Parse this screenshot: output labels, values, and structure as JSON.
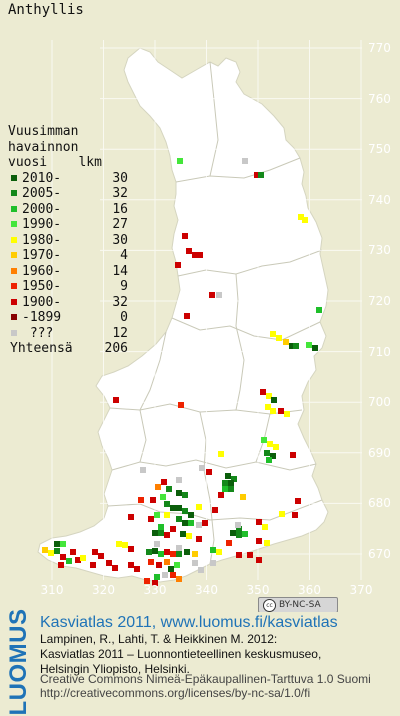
{
  "map": {
    "title": "Anthyllis",
    "y_ticks": [
      "770",
      "760",
      "750",
      "740",
      "730",
      "720",
      "710",
      "700",
      "690",
      "680",
      "670"
    ],
    "x_ticks": [
      "310",
      "320",
      "330",
      "340",
      "350",
      "360",
      "370"
    ],
    "license_badge": "BY-NC-SA",
    "land_color": "#ffffff",
    "background_color": "#ecebd2",
    "border_color": "#bbbbbb"
  },
  "legend": {
    "title_lines": [
      "Vuusimman",
      "havainnon",
      "vuosi    lkm"
    ],
    "entries": [
      {
        "label": "2010-",
        "count": "30",
        "color": "#0b5e0b"
      },
      {
        "label": "2005-",
        "count": "32",
        "color": "#14881a"
      },
      {
        "label": "2000-",
        "count": "16",
        "color": "#1fbf2a"
      },
      {
        "label": "1990-",
        "count": "27",
        "color": "#44e63a"
      },
      {
        "label": "1980-",
        "count": "30",
        "color": "#ffff00"
      },
      {
        "label": "1970-",
        "count": "4",
        "color": "#ffcc00"
      },
      {
        "label": "1960-",
        "count": "14",
        "color": "#ff7f00"
      },
      {
        "label": "1950-",
        "count": "9",
        "color": "#ee2200"
      },
      {
        "label": "1900-",
        "count": "32",
        "color": "#cc0000"
      },
      {
        "label": "-1899",
        "count": "0",
        "color": "#880000"
      },
      {
        "label": " ???",
        "count": "12",
        "color": "#c8c8c8"
      }
    ],
    "total_label": "Yhteensä",
    "total_count": "206"
  },
  "footer": {
    "brand": "LUOMUS",
    "atlas_link": "Kasviatlas 2011, www.luomus.fi/kasviatlas",
    "citation": [
      "Lampinen, R., Lahti, T. & Heikkinen M. 2012:",
      "Kasviatlas 2011 – Luonnontieteellinen keskusmuseo,",
      "Helsingin Yliopisto, Helsinki."
    ],
    "license": [
      "Creative Commons Nimeä-Epäkaupallinen-Tarttuva 1.0 Suomi",
      "http://creativecommons.org/licenses/by-nc-sa/1.0/fi"
    ]
  },
  "occurrences": [
    {
      "x": 177,
      "y": 158,
      "c": 3
    },
    {
      "x": 242,
      "y": 158,
      "c": 10
    },
    {
      "x": 254,
      "y": 172,
      "c": 8
    },
    {
      "x": 258,
      "y": 172,
      "c": 1
    },
    {
      "x": 298,
      "y": 214,
      "c": 4
    },
    {
      "x": 302,
      "y": 217,
      "c": 4
    },
    {
      "x": 182,
      "y": 233,
      "c": 8
    },
    {
      "x": 186,
      "y": 248,
      "c": 8
    },
    {
      "x": 192,
      "y": 252,
      "c": 8
    },
    {
      "x": 197,
      "y": 252,
      "c": 8
    },
    {
      "x": 175,
      "y": 262,
      "c": 8
    },
    {
      "x": 209,
      "y": 292,
      "c": 8
    },
    {
      "x": 216,
      "y": 292,
      "c": 10
    },
    {
      "x": 316,
      "y": 307,
      "c": 2
    },
    {
      "x": 184,
      "y": 313,
      "c": 8
    },
    {
      "x": 270,
      "y": 331,
      "c": 4
    },
    {
      "x": 276,
      "y": 335,
      "c": 4
    },
    {
      "x": 283,
      "y": 339,
      "c": 5
    },
    {
      "x": 289,
      "y": 343,
      "c": 0
    },
    {
      "x": 293,
      "y": 343,
      "c": 1
    },
    {
      "x": 306,
      "y": 342,
      "c": 3
    },
    {
      "x": 312,
      "y": 345,
      "c": 0
    },
    {
      "x": 260,
      "y": 389,
      "c": 8
    },
    {
      "x": 266,
      "y": 393,
      "c": 4
    },
    {
      "x": 271,
      "y": 397,
      "c": 0
    },
    {
      "x": 265,
      "y": 404,
      "c": 4
    },
    {
      "x": 270,
      "y": 408,
      "c": 4
    },
    {
      "x": 278,
      "y": 408,
      "c": 8
    },
    {
      "x": 284,
      "y": 411,
      "c": 4
    },
    {
      "x": 113,
      "y": 397,
      "c": 8
    },
    {
      "x": 178,
      "y": 402,
      "c": 7
    },
    {
      "x": 261,
      "y": 437,
      "c": 3
    },
    {
      "x": 267,
      "y": 441,
      "c": 4
    },
    {
      "x": 273,
      "y": 444,
      "c": 4
    },
    {
      "x": 264,
      "y": 450,
      "c": 1
    },
    {
      "x": 270,
      "y": 453,
      "c": 0
    },
    {
      "x": 290,
      "y": 452,
      "c": 8
    },
    {
      "x": 266,
      "y": 457,
      "c": 2
    },
    {
      "x": 218,
      "y": 451,
      "c": 4
    },
    {
      "x": 199,
      "y": 465,
      "c": 10
    },
    {
      "x": 206,
      "y": 469,
      "c": 8
    },
    {
      "x": 225,
      "y": 473,
      "c": 0
    },
    {
      "x": 231,
      "y": 476,
      "c": 1
    },
    {
      "x": 222,
      "y": 480,
      "c": 1
    },
    {
      "x": 228,
      "y": 480,
      "c": 0
    },
    {
      "x": 222,
      "y": 486,
      "c": 2
    },
    {
      "x": 228,
      "y": 486,
      "c": 1
    },
    {
      "x": 218,
      "y": 492,
      "c": 8
    },
    {
      "x": 240,
      "y": 494,
      "c": 5
    },
    {
      "x": 176,
      "y": 477,
      "c": 10
    },
    {
      "x": 161,
      "y": 479,
      "c": 8
    },
    {
      "x": 155,
      "y": 484,
      "c": 6
    },
    {
      "x": 166,
      "y": 486,
      "c": 1
    },
    {
      "x": 176,
      "y": 490,
      "c": 0
    },
    {
      "x": 182,
      "y": 492,
      "c": 1
    },
    {
      "x": 160,
      "y": 494,
      "c": 3
    },
    {
      "x": 150,
      "y": 497,
      "c": 8
    },
    {
      "x": 138,
      "y": 497,
      "c": 7
    },
    {
      "x": 164,
      "y": 501,
      "c": 1
    },
    {
      "x": 170,
      "y": 505,
      "c": 0
    },
    {
      "x": 176,
      "y": 505,
      "c": 0
    },
    {
      "x": 182,
      "y": 508,
      "c": 1
    },
    {
      "x": 188,
      "y": 512,
      "c": 0
    },
    {
      "x": 176,
      "y": 516,
      "c": 1
    },
    {
      "x": 182,
      "y": 520,
      "c": 0
    },
    {
      "x": 188,
      "y": 520,
      "c": 2
    },
    {
      "x": 164,
      "y": 512,
      "c": 4
    },
    {
      "x": 154,
      "y": 512,
      "c": 3
    },
    {
      "x": 148,
      "y": 516,
      "c": 8
    },
    {
      "x": 128,
      "y": 514,
      "c": 8
    },
    {
      "x": 196,
      "y": 504,
      "c": 4
    },
    {
      "x": 202,
      "y": 520,
      "c": 8
    },
    {
      "x": 212,
      "y": 507,
      "c": 8
    },
    {
      "x": 295,
      "y": 498,
      "c": 8
    },
    {
      "x": 292,
      "y": 512,
      "c": 8
    },
    {
      "x": 279,
      "y": 511,
      "c": 4
    },
    {
      "x": 256,
      "y": 519,
      "c": 8
    },
    {
      "x": 262,
      "y": 524,
      "c": 4
    },
    {
      "x": 236,
      "y": 526,
      "c": 1
    },
    {
      "x": 230,
      "y": 530,
      "c": 0
    },
    {
      "x": 236,
      "y": 532,
      "c": 1
    },
    {
      "x": 242,
      "y": 531,
      "c": 2
    },
    {
      "x": 226,
      "y": 540,
      "c": 7
    },
    {
      "x": 256,
      "y": 538,
      "c": 8
    },
    {
      "x": 264,
      "y": 540,
      "c": 4
    },
    {
      "x": 158,
      "y": 524,
      "c": 2
    },
    {
      "x": 152,
      "y": 530,
      "c": 0
    },
    {
      "x": 158,
      "y": 530,
      "c": 1
    },
    {
      "x": 164,
      "y": 532,
      "c": 8
    },
    {
      "x": 170,
      "y": 526,
      "c": 8
    },
    {
      "x": 180,
      "y": 531,
      "c": 0
    },
    {
      "x": 186,
      "y": 533,
      "c": 4
    },
    {
      "x": 196,
      "y": 536,
      "c": 8
    },
    {
      "x": 116,
      "y": 541,
      "c": 4
    },
    {
      "x": 122,
      "y": 542,
      "c": 4
    },
    {
      "x": 128,
      "y": 546,
      "c": 8
    },
    {
      "x": 92,
      "y": 549,
      "c": 8
    },
    {
      "x": 146,
      "y": 549,
      "c": 1
    },
    {
      "x": 152,
      "y": 548,
      "c": 0
    },
    {
      "x": 158,
      "y": 551,
      "c": 2
    },
    {
      "x": 164,
      "y": 549,
      "c": 8
    },
    {
      "x": 170,
      "y": 551,
      "c": 7
    },
    {
      "x": 176,
      "y": 551,
      "c": 1
    },
    {
      "x": 184,
      "y": 549,
      "c": 0
    },
    {
      "x": 192,
      "y": 551,
      "c": 5
    },
    {
      "x": 54,
      "y": 541,
      "c": 0
    },
    {
      "x": 60,
      "y": 541,
      "c": 3
    },
    {
      "x": 42,
      "y": 547,
      "c": 5
    },
    {
      "x": 48,
      "y": 550,
      "c": 4
    },
    {
      "x": 54,
      "y": 548,
      "c": 1
    },
    {
      "x": 60,
      "y": 554,
      "c": 8
    },
    {
      "x": 66,
      "y": 558,
      "c": 2
    },
    {
      "x": 75,
      "y": 557,
      "c": 8
    },
    {
      "x": 80,
      "y": 555,
      "c": 4
    },
    {
      "x": 70,
      "y": 549,
      "c": 8
    },
    {
      "x": 58,
      "y": 562,
      "c": 8
    },
    {
      "x": 210,
      "y": 547,
      "c": 2
    },
    {
      "x": 216,
      "y": 549,
      "c": 4
    },
    {
      "x": 236,
      "y": 552,
      "c": 8
    },
    {
      "x": 247,
      "y": 552,
      "c": 8
    },
    {
      "x": 256,
      "y": 557,
      "c": 8
    },
    {
      "x": 148,
      "y": 559,
      "c": 7
    },
    {
      "x": 156,
      "y": 562,
      "c": 8
    },
    {
      "x": 164,
      "y": 559,
      "c": 6
    },
    {
      "x": 168,
      "y": 566,
      "c": 0
    },
    {
      "x": 174,
      "y": 562,
      "c": 3
    },
    {
      "x": 170,
      "y": 572,
      "c": 7
    },
    {
      "x": 176,
      "y": 576,
      "c": 6
    },
    {
      "x": 154,
      "y": 574,
      "c": 2
    },
    {
      "x": 162,
      "y": 572,
      "c": 10
    },
    {
      "x": 144,
      "y": 578,
      "c": 7
    },
    {
      "x": 152,
      "y": 580,
      "c": 8
    },
    {
      "x": 112,
      "y": 565,
      "c": 8
    },
    {
      "x": 128,
      "y": 562,
      "c": 8
    },
    {
      "x": 134,
      "y": 566,
      "c": 8
    },
    {
      "x": 106,
      "y": 560,
      "c": 8
    },
    {
      "x": 98,
      "y": 553,
      "c": 8
    },
    {
      "x": 90,
      "y": 562,
      "c": 8
    },
    {
      "x": 196,
      "y": 522,
      "c": 10
    },
    {
      "x": 140,
      "y": 467,
      "c": 10
    },
    {
      "x": 235,
      "y": 522,
      "c": 10
    },
    {
      "x": 192,
      "y": 560,
      "c": 10
    },
    {
      "x": 198,
      "y": 567,
      "c": 10
    },
    {
      "x": 176,
      "y": 545,
      "c": 10
    },
    {
      "x": 154,
      "y": 541,
      "c": 10
    },
    {
      "x": 210,
      "y": 560,
      "c": 10
    }
  ]
}
